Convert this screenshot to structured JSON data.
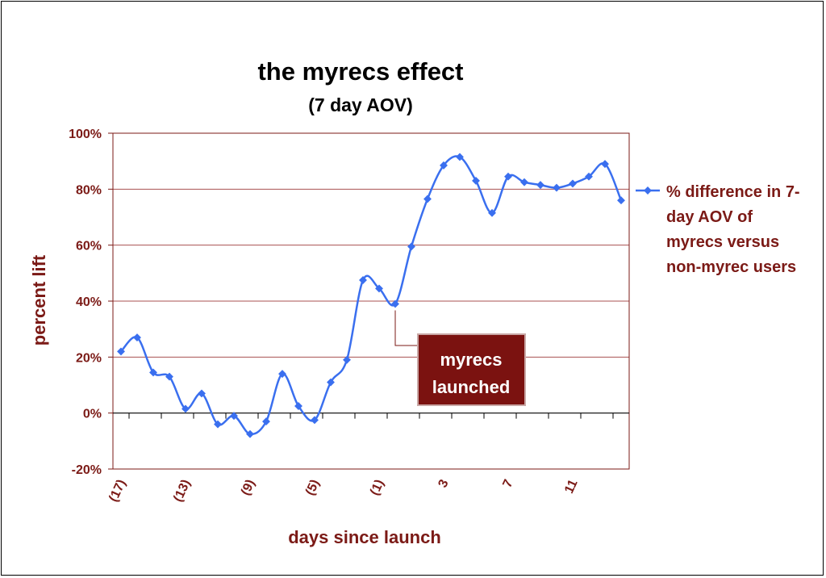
{
  "chart_data": {
    "type": "line",
    "title": "the myrecs effect",
    "subtitle": "(7 day AOV)",
    "xlabel": "days since launch",
    "ylabel": "percent lift",
    "ylim": [
      -20,
      100
    ],
    "y_ticks": [
      "-20%",
      "0%",
      "20%",
      "40%",
      "60%",
      "80%",
      "100%"
    ],
    "y_tick_values": [
      -20,
      0,
      20,
      40,
      60,
      80,
      100
    ],
    "x_tick_labels": [
      "(17)",
      "(13)",
      "(9)",
      "(5)",
      "(1)",
      "3",
      "7",
      "11"
    ],
    "x_tick_values": [
      -17,
      -13,
      -9,
      -5,
      -1,
      3,
      7,
      11
    ],
    "x_range": [
      -17.5,
      14.5
    ],
    "grid": true,
    "legend_position": "right",
    "annotation": {
      "text_line1": "myrecs",
      "text_line2": "launched",
      "x": 0,
      "y": 39
    },
    "series": [
      {
        "name": "% difference in 7-day AOV of myrecs versus non-myrec users",
        "legend_lines": [
          "% difference in 7-",
          "day AOV of",
          "myrecs versus",
          "non-myrec users"
        ],
        "color": "#3a6fef",
        "x": [
          -17,
          -16,
          -15,
          -14,
          -13,
          -12,
          -11,
          -10,
          -9,
          -8,
          -7,
          -6,
          -5,
          -4,
          -3,
          -2,
          -1,
          0,
          1,
          2,
          3,
          4,
          5,
          6,
          7,
          8,
          9,
          10,
          11,
          12,
          13,
          14
        ],
        "values": [
          22,
          27,
          14.5,
          13,
          1.5,
          7,
          -4,
          -1,
          -7.5,
          -3,
          14,
          2.5,
          -2.5,
          11,
          19,
          47.5,
          44.5,
          39,
          59.5,
          76.5,
          88.5,
          91.5,
          83,
          71.5,
          84.5,
          82.5,
          81.5,
          80.5,
          82,
          84.5,
          89,
          76
        ]
      }
    ]
  }
}
